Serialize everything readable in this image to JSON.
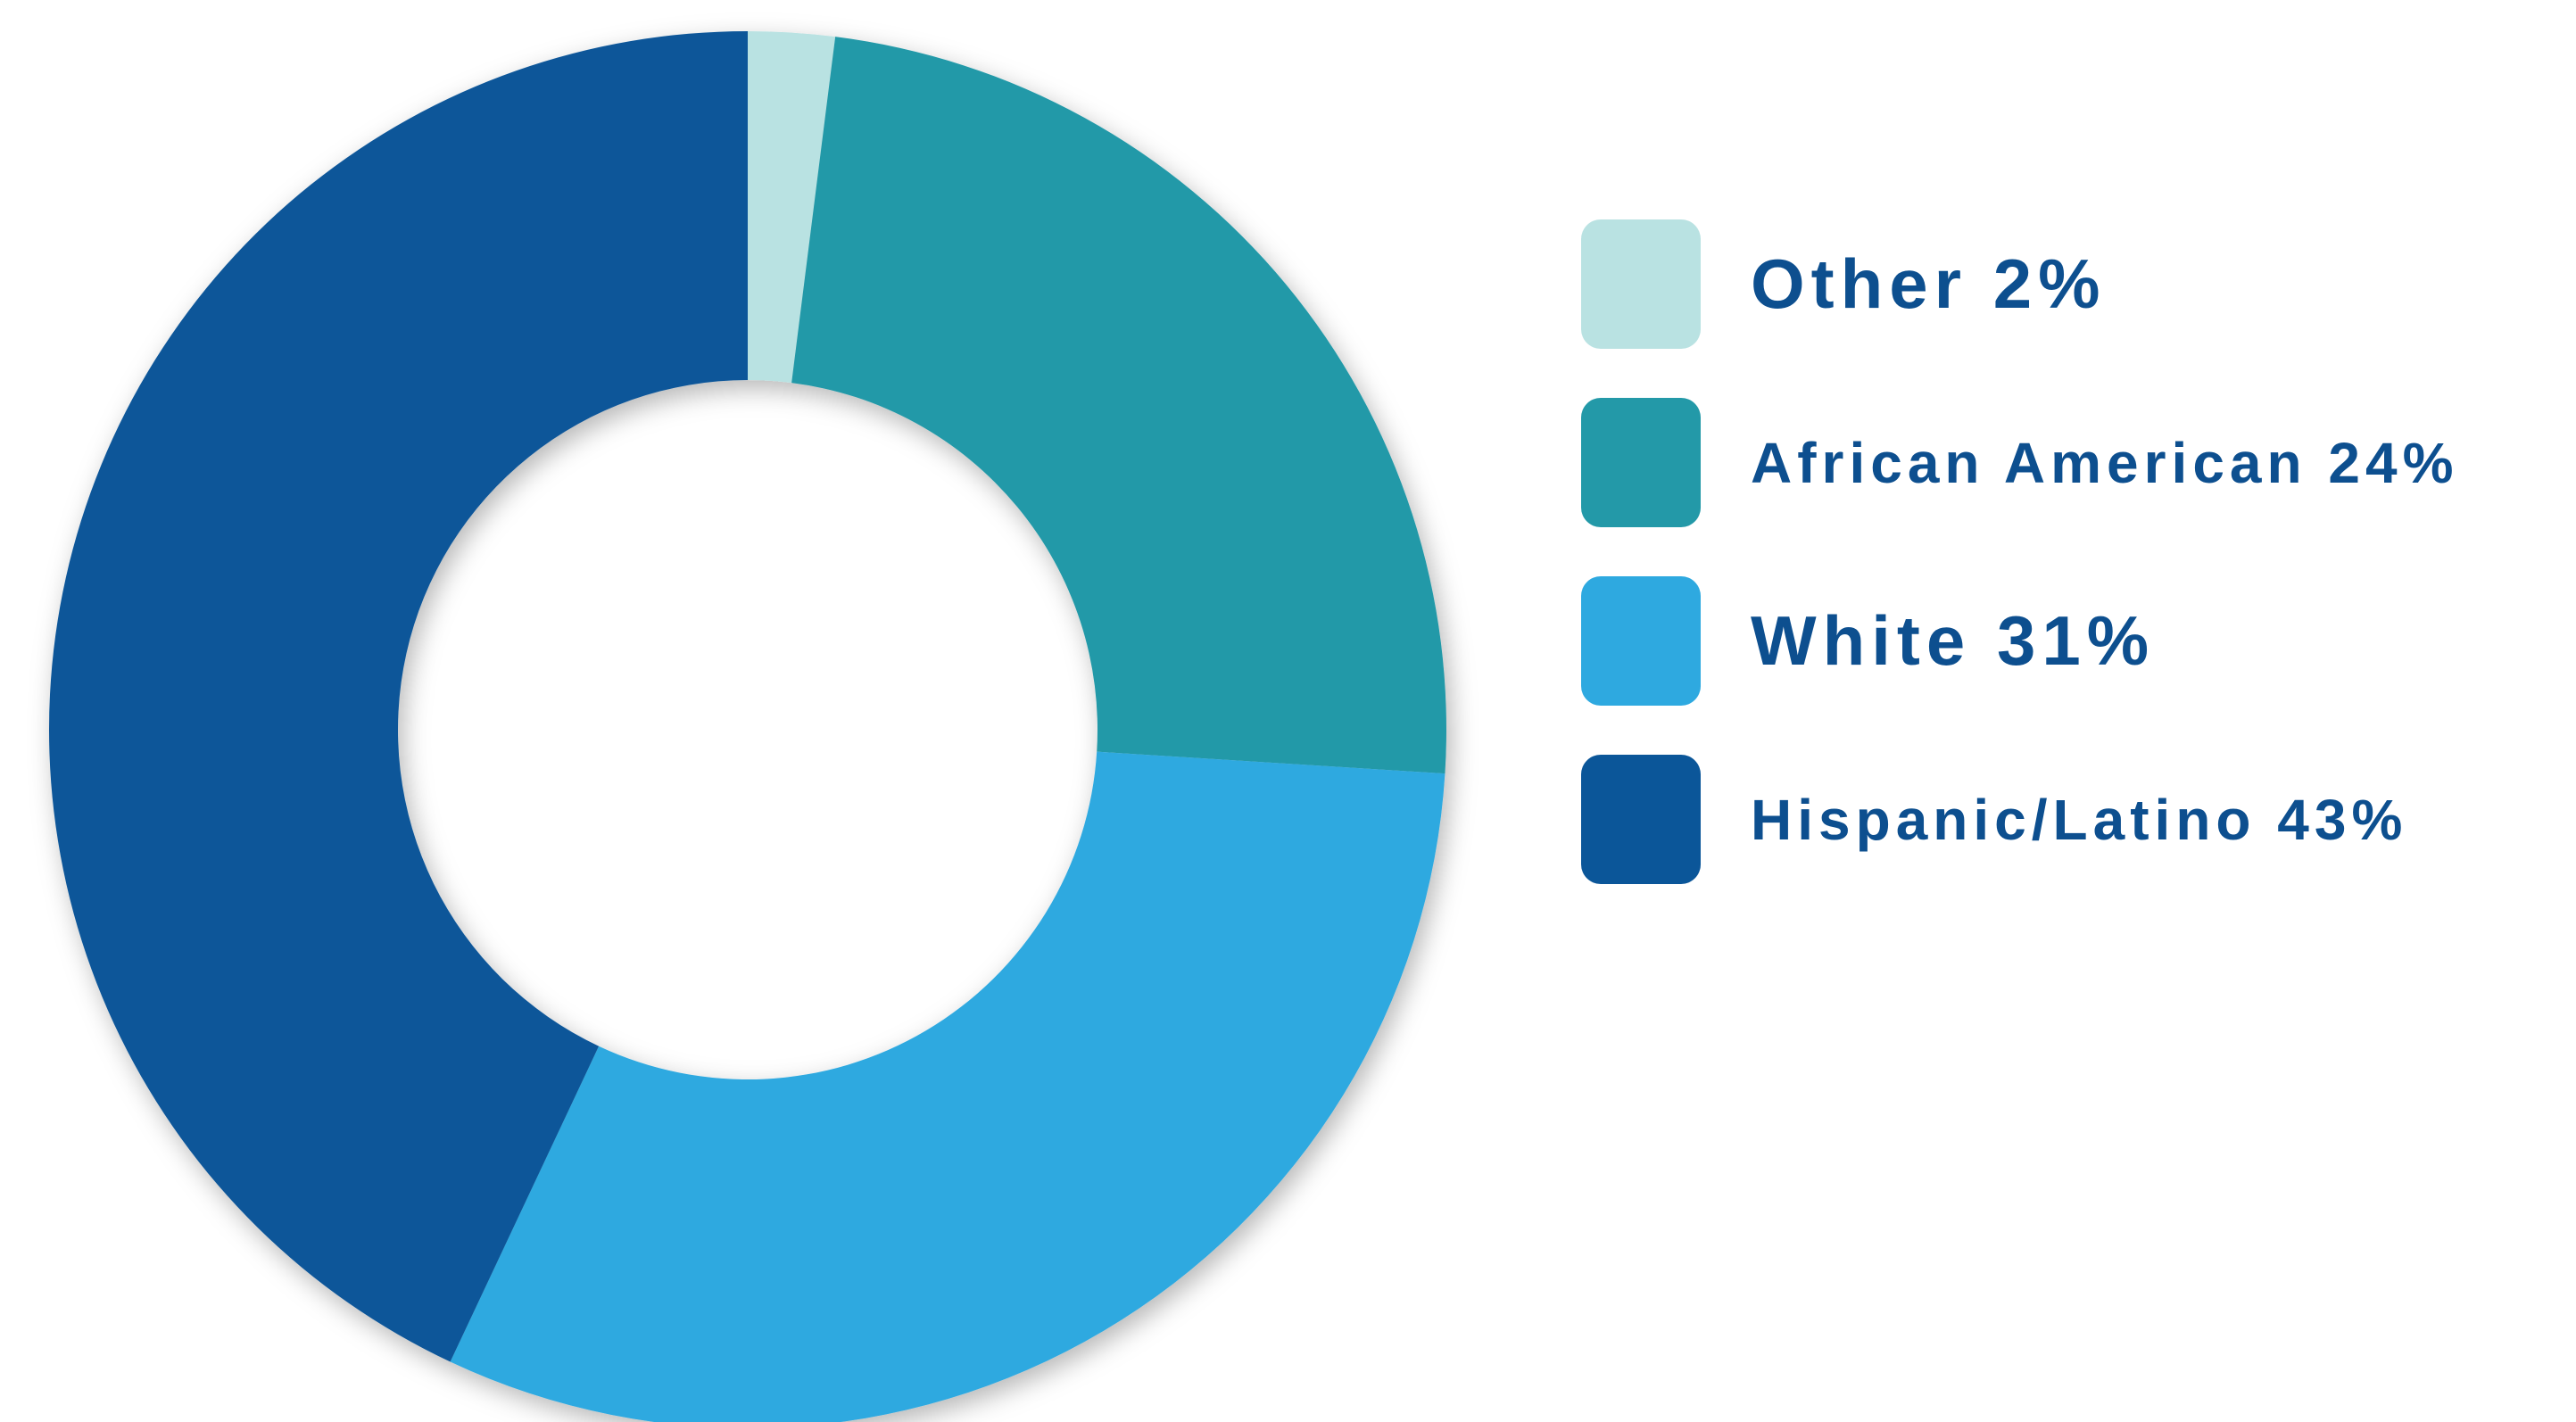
{
  "chart_data": {
    "type": "pie",
    "donut": true,
    "categories": [
      "Other",
      "African American",
      "White",
      "Hispanic/Latino"
    ],
    "values": [
      2,
      24,
      31,
      43
    ],
    "colors": [
      "#b9e2e2",
      "#2399a8",
      "#2ea9e0",
      "#0b5699"
    ],
    "legend_labels": [
      "Other 2%",
      "African American 24%",
      "White 31%",
      "Hispanic/Latino 43%"
    ],
    "legend_position": "right",
    "start_angle": "top",
    "direction": "clockwise"
  }
}
